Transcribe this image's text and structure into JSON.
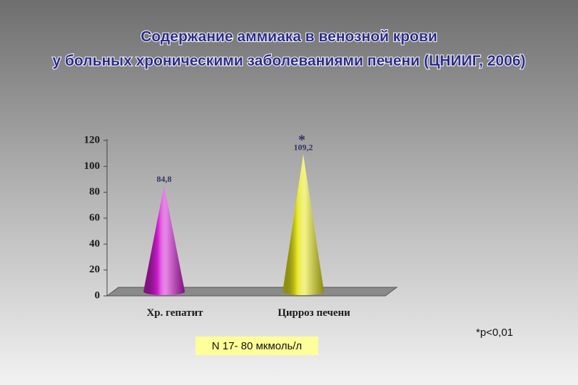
{
  "chart_data": {
    "type": "cone",
    "title": [
      "Содержание аммиака в венозной крови",
      "у больных хроническими заболеваниями печени (ЦНИИГ, 2006)"
    ],
    "categories": [
      "Хр. гепатит",
      "Цирроз печени"
    ],
    "series": [
      {
        "colors": [
          "#d21ed2",
          "#e6e61e"
        ],
        "values": [
          84.8,
          109.2
        ],
        "value_labels": [
          "84,8",
          "109,2"
        ]
      }
    ],
    "significance_mark": "*",
    "ylim": [
      0,
      120
    ],
    "yticks": [
      0,
      20,
      40,
      60,
      80,
      100,
      120
    ],
    "reference_note": "N 17- 80 мкмоль/л",
    "significance_note": "*р<0,01"
  }
}
